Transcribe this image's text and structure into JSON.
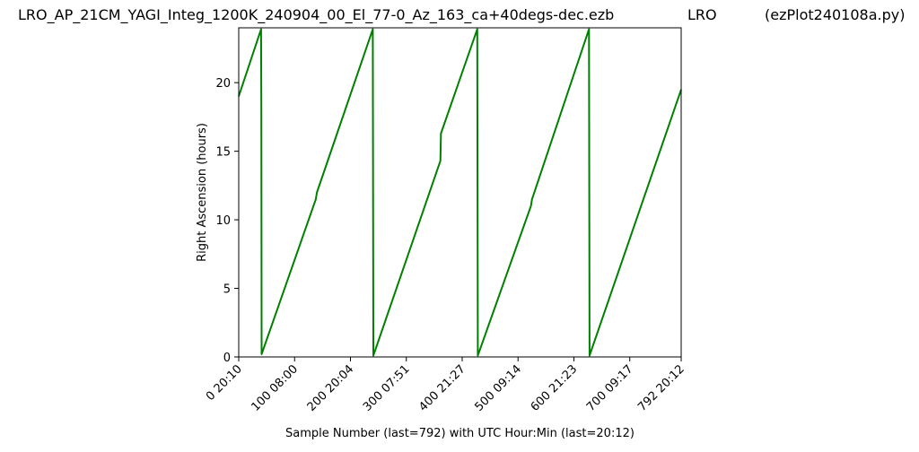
{
  "header": {
    "left": "LRO_AP_21CM_YAGI_Integ_1200K_240904_00_El_77-0_Az_163_ca+40degs-dec.ezb",
    "middle": "LRO",
    "right": "(ezPlot240108a.py)"
  },
  "chart_data": {
    "type": "line",
    "xlabel": "Sample Number (last=792) with UTC Hour:Min (last=20:12)",
    "ylabel": "Right Ascension (hours)",
    "xlim": [
      0,
      792
    ],
    "ylim": [
      0,
      24
    ],
    "grid": false,
    "x_ticks": [
      {
        "value": 0,
        "label": "0  20:10"
      },
      {
        "value": 100,
        "label": "100  08:00"
      },
      {
        "value": 200,
        "label": "200  20:04"
      },
      {
        "value": 300,
        "label": "300  07:51"
      },
      {
        "value": 400,
        "label": "400  21:27"
      },
      {
        "value": 500,
        "label": "500  09:14"
      },
      {
        "value": 600,
        "label": "600  21:23"
      },
      {
        "value": 700,
        "label": "700  09:17"
      },
      {
        "value": 792,
        "label": "792  20:12"
      }
    ],
    "y_ticks": [
      0,
      5,
      10,
      15,
      20
    ],
    "series": [
      {
        "color": "#008000",
        "points": [
          [
            0,
            19.0
          ],
          [
            40,
            23.9
          ],
          [
            40.5,
            18.0
          ],
          [
            41,
            0.2
          ],
          [
            138,
            11.5
          ],
          [
            140,
            12.0
          ],
          [
            240,
            23.9
          ],
          [
            241,
            0.1
          ],
          [
            361,
            14.3
          ],
          [
            362,
            16.3
          ],
          [
            427,
            23.9
          ],
          [
            428,
            0.1
          ],
          [
            523,
            11.0
          ],
          [
            525,
            11.5
          ],
          [
            627,
            23.9
          ],
          [
            628,
            0.1
          ],
          [
            792,
            19.5
          ]
        ]
      }
    ]
  }
}
